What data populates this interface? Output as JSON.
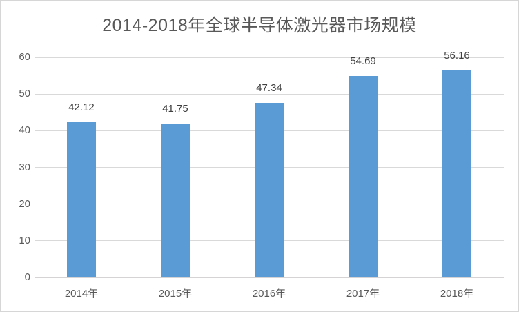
{
  "chart_data": {
    "type": "bar",
    "title": "2014-2018年全球半导体激光器市场规模",
    "categories": [
      "2014年",
      "2015年",
      "2016年",
      "2017年",
      "2018年"
    ],
    "values": [
      42.12,
      41.75,
      47.34,
      54.69,
      56.16
    ],
    "data_labels": [
      "42.12",
      "41.75",
      "47.34",
      "54.69",
      "56.16"
    ],
    "xlabel": "",
    "ylabel": "",
    "ylim": [
      0,
      60
    ],
    "yticks": [
      0,
      10,
      20,
      30,
      40,
      50,
      60
    ],
    "grid": "horizontal",
    "legend_position": "none",
    "colors": {
      "bar_fill": "#5b9bd5",
      "gridline": "#d9d9d9",
      "axis_line": "#d5d3d3",
      "title_text": "#595959",
      "tick_text": "#595959",
      "data_label_text": "#404040",
      "chart_border": "#d6d6d6",
      "background": "#ffffff"
    }
  }
}
